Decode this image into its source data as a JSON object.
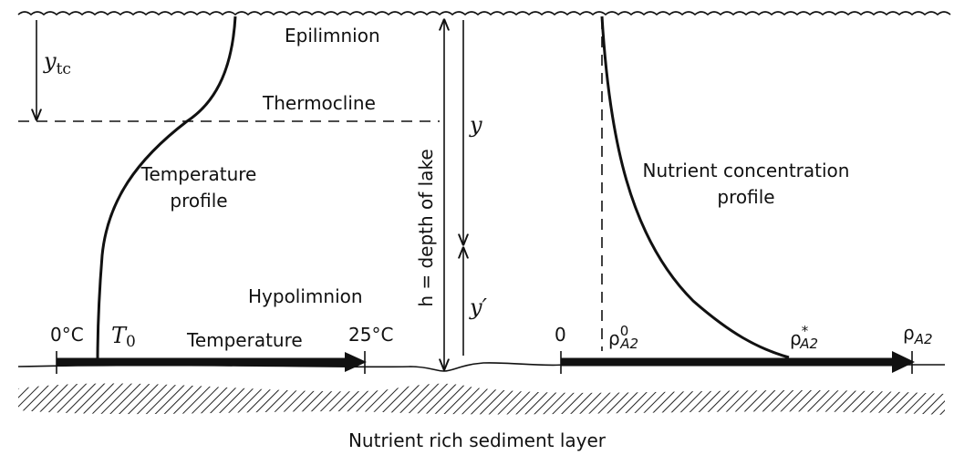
{
  "layers": {
    "epilimnion": "Epilimnion",
    "thermocline": "Thermocline",
    "hypolimnion": "Hypolimnion"
  },
  "profiles": {
    "temperature": [
      "Temperature",
      "profile"
    ],
    "nutrient": [
      "Nutrient concentration",
      "profile"
    ]
  },
  "depth_label": "h = depth of lake",
  "depth_marks": {
    "ytc": {
      "base": "y",
      "sub": "tc"
    },
    "y": "y",
    "y_prime": "y′"
  },
  "temperature_axis": {
    "start": "0°C",
    "t0": {
      "base": "T",
      "sub": "0"
    },
    "title": "Temperature",
    "end": "25°C"
  },
  "nutrient_axis": {
    "start": "0",
    "rho0": {
      "base": "ρ",
      "sup": "0",
      "sub": "A2"
    },
    "rho_star": {
      "base": "ρ",
      "sup": "*",
      "sub": "A2"
    },
    "rho": {
      "base": "ρ",
      "sub": "A2"
    }
  },
  "sediment": "Nutrient rich sediment layer"
}
